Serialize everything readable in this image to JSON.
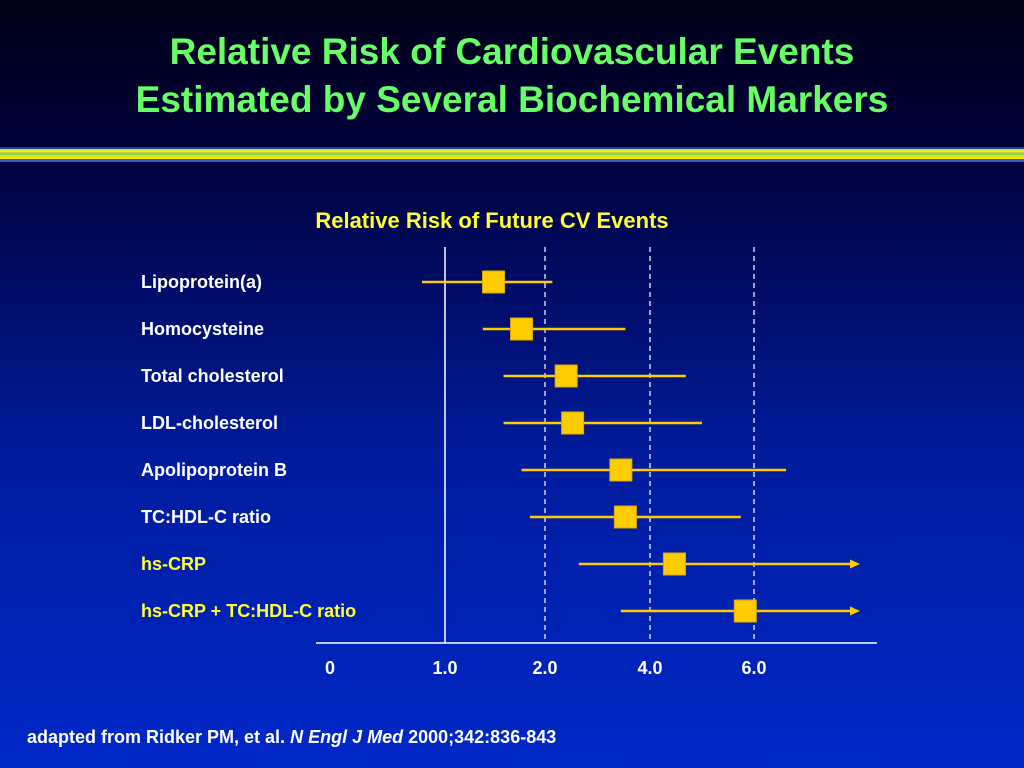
{
  "slide": {
    "title_line1": "Relative Risk of Cardiovascular Events",
    "title_line2": "Estimated by Several Biochemical Markers"
  },
  "footnote": {
    "prefix": "adapted from Ridker PM, et al.",
    "journal": "N Engl J Med",
    "citation": "2000;342:836-843"
  },
  "colors": {
    "title": "#66ff66",
    "chart_title": "#ffff33",
    "marker": "#ffcc00",
    "highlight_label": "#ffff33",
    "label": "#ffffff"
  },
  "chart_data": {
    "type": "forest",
    "title": "Relative Risk of Future CV Events",
    "xlabel": "",
    "x_ticks": [
      "0",
      "1.0",
      "2.0",
      "4.0",
      "6.0"
    ],
    "grid": "dashed vertical at 2.0, 4.0, 6.0",
    "series": [
      {
        "name": "Lipoprotein(a)",
        "estimate": 1.4,
        "lower": 0.8,
        "upper": 2.1,
        "highlight": false
      },
      {
        "name": "Homocysteine",
        "estimate": 1.7,
        "lower": 1.3,
        "upper": 3.4,
        "highlight": false
      },
      {
        "name": "Total cholesterol",
        "estimate": 2.3,
        "lower": 1.5,
        "upper": 4.6,
        "highlight": false
      },
      {
        "name": "LDL-cholesterol",
        "estimate": 2.4,
        "lower": 1.5,
        "upper": 4.9,
        "highlight": false
      },
      {
        "name": "Apolipoprotein B",
        "estimate": 3.3,
        "lower": 1.7,
        "upper": 6.8,
        "highlight": false
      },
      {
        "name": "TC:HDL-C ratio",
        "estimate": 3.4,
        "lower": 1.8,
        "upper": 5.7,
        "highlight": false
      },
      {
        "name": "hs-CRP",
        "estimate": 4.4,
        "lower": 2.5,
        "upper": null,
        "highlight": true
      },
      {
        "name": "hs-CRP + TC:HDL-C ratio",
        "estimate": 5.8,
        "lower": 3.3,
        "upper": null,
        "highlight": true
      }
    ]
  }
}
